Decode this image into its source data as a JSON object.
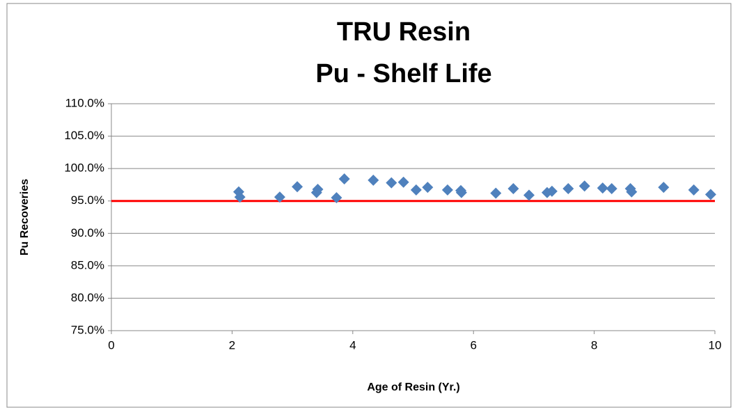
{
  "chart_data": {
    "type": "scatter",
    "title": [
      "TRU Resin",
      "Pu - Shelf Life"
    ],
    "x_label": "Age of Resin (Yr.)",
    "y_label": "Pu Recoveries",
    "color": "#4f81bd",
    "x": [
      2.11,
      2.13,
      2.79,
      3.08,
      3.4,
      3.42,
      3.73,
      3.86,
      4.34,
      4.64,
      4.84,
      5.05,
      5.24,
      5.57,
      5.79,
      5.8,
      6.37,
      6.66,
      6.92,
      7.22,
      7.3,
      7.57,
      7.84,
      8.14,
      8.29,
      8.6,
      8.62,
      9.15,
      9.65,
      9.93
    ],
    "values": [
      96.4,
      95.6,
      95.6,
      97.2,
      96.3,
      96.8,
      95.5,
      98.4,
      98.2,
      97.8,
      97.9,
      96.7,
      97.1,
      96.7,
      96.6,
      96.3,
      96.2,
      96.9,
      95.9,
      96.3,
      96.5,
      96.9,
      97.3,
      97.0,
      96.9,
      96.9,
      96.4,
      97.1,
      96.7,
      96.0
    ],
    "xlim": [
      0,
      10
    ],
    "xticks": [
      0,
      2,
      4,
      6,
      8,
      10
    ],
    "ylim": [
      75,
      110
    ],
    "yticks": [
      {
        "value": 75,
        "label": "75.0%"
      },
      {
        "value": 80,
        "label": "80.0%"
      },
      {
        "value": 85,
        "label": "85.0%"
      },
      {
        "value": 90,
        "label": "90.0%"
      },
      {
        "value": 95,
        "label": "95.0%"
      },
      {
        "value": 100,
        "label": "100.0%"
      },
      {
        "value": 105,
        "label": "105.0%"
      },
      {
        "value": 110,
        "label": "110.0%"
      }
    ],
    "grid": true,
    "reference_line": {
      "value": 95,
      "color": "#ff0000"
    }
  }
}
